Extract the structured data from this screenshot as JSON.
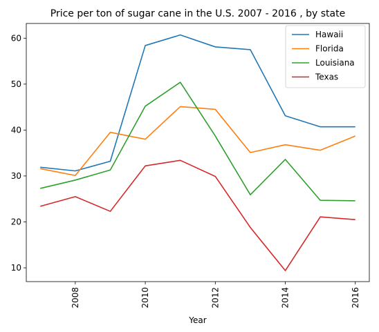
{
  "chart_data": {
    "type": "line",
    "title": "Price per ton of sugar cane in the U.S. 2007 - 2016 , by state",
    "xlabel": "Year",
    "ylabel": "",
    "x": [
      2007,
      2008,
      2009,
      2010,
      2011,
      2012,
      2013,
      2014,
      2015,
      2016
    ],
    "xlim": [
      2006.6,
      2016.4
    ],
    "ylim": [
      7.0,
      63.2
    ],
    "x_ticks": [
      "2008",
      "2010",
      "2012",
      "2014",
      "2016"
    ],
    "x_tick_values": [
      2008,
      2010,
      2012,
      2014,
      2016
    ],
    "y_ticks": [
      "10",
      "20",
      "30",
      "40",
      "50",
      "60"
    ],
    "y_tick_values": [
      10,
      20,
      30,
      40,
      50,
      60
    ],
    "grid": false,
    "legend_position": "top-right",
    "series": [
      {
        "name": "Hawaii",
        "color": "#1f77b4",
        "values": [
          31.9,
          31.1,
          33.2,
          58.4,
          60.7,
          58.1,
          57.5,
          43.1,
          40.7,
          40.7
        ]
      },
      {
        "name": "Florida",
        "color": "#ff7f0e",
        "values": [
          31.6,
          30.1,
          39.5,
          38.0,
          45.1,
          44.5,
          35.1,
          36.8,
          35.6,
          38.7
        ]
      },
      {
        "name": "Louisiana",
        "color": "#2ca02c",
        "values": [
          27.3,
          29.1,
          31.3,
          45.2,
          50.4,
          38.7,
          25.9,
          33.6,
          24.7,
          24.6
        ]
      },
      {
        "name": "Texas",
        "color": "#d62728",
        "values": [
          23.4,
          25.5,
          22.3,
          32.2,
          33.4,
          29.9,
          18.8,
          9.4,
          21.1,
          20.5
        ]
      }
    ]
  }
}
